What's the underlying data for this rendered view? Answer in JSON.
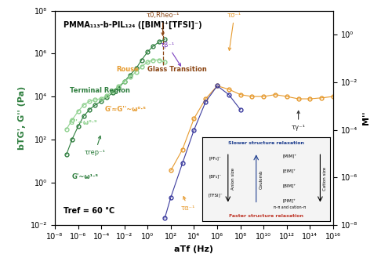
{
  "chart_data": {
    "type": "line",
    "title": "PMMA₁₁₃-b-PIL₁₂₄ ([BIM]⁺[TFSI]⁻)",
    "subtitle": "Tref = 60 °C",
    "x_label": "aTf (Hz)",
    "y_label": "bTG', G'' (Pa)",
    "y2_label": "M''",
    "log": true,
    "grid": false,
    "xlim": [
      1e-08,
      1e+16
    ],
    "xticks": [
      {
        "value": 1e-08,
        "label": "10⁻⁸"
      },
      {
        "value": 1e-06,
        "label": "10⁻⁶"
      },
      {
        "value": 0.0001,
        "label": "10⁻⁴"
      },
      {
        "value": 0.01,
        "label": "10⁻²"
      },
      {
        "value": 1,
        "label": "10⁰"
      },
      {
        "value": 100.0,
        "label": "10²"
      },
      {
        "value": 10000.0,
        "label": "10⁴"
      },
      {
        "value": 1000000.0,
        "label": "10⁶"
      },
      {
        "value": 100000000.0,
        "label": "10⁸"
      },
      {
        "value": 10000000000.0,
        "label": "10¹⁰"
      },
      {
        "value": 1000000000000.0,
        "label": "10¹²"
      },
      {
        "value": 100000000000000.0,
        "label": "10¹⁴"
      },
      {
        "value": 1e+16,
        "label": "10¹⁶"
      }
    ],
    "ylim": [
      0.01,
      100000000.0
    ],
    "yticks": [
      {
        "value": 0.01,
        "label": "10⁻²"
      },
      {
        "value": 1,
        "label": "10⁰"
      },
      {
        "value": 100.0,
        "label": "10²"
      },
      {
        "value": 10000.0,
        "label": "10⁴"
      },
      {
        "value": 1000000.0,
        "label": "10⁶"
      },
      {
        "value": 100000000.0,
        "label": "10⁸"
      }
    ],
    "y2lim": [
      1e-08,
      10.0
    ],
    "y2ticks": [
      {
        "value": 1e-08,
        "label": "10⁻⁸"
      },
      {
        "value": 1e-06,
        "label": "10⁻⁶"
      },
      {
        "value": 0.0001,
        "label": "10⁻⁴"
      },
      {
        "value": 0.01,
        "label": "10⁻²"
      },
      {
        "value": 1,
        "label": "10⁰"
      }
    ],
    "series": [
      {
        "color": "#2f7f3f",
        "marker": "circle",
        "axis": "y",
        "x": [
          1e-07,
          3e-07,
          1e-06,
          3e-06,
          1e-05,
          3e-05,
          0.0001,
          0.0003,
          0.001,
          0.003,
          0.01,
          0.03,
          0.1,
          0.3,
          1,
          3,
          10,
          30
        ],
        "values": [
          20,
          100,
          400,
          1200,
          2500,
          4000,
          6000,
          9000,
          15000,
          25000,
          50000,
          100000,
          200000,
          500000,
          1200000,
          2200000,
          3500000,
          4500000
        ]
      },
      {
        "color": "#8fd18f",
        "marker": "circle",
        "axis": "y",
        "x": [
          1e-07,
          3e-07,
          1e-06,
          3e-06,
          1e-05,
          3e-05,
          0.0001,
          0.0003,
          0.001,
          0.003,
          0.01,
          0.03,
          0.1,
          0.3,
          1,
          3,
          10,
          30
        ],
        "values": [
          300,
          800,
          2000,
          4000,
          6000,
          7000,
          8000,
          11000,
          18000,
          30000,
          50000,
          80000,
          140000,
          250000,
          400000,
          500000,
          500000,
          400000
        ]
      },
      {
        "color": "#e69a2e",
        "marker": "circle",
        "axis": "y2",
        "x": [
          100.0,
          1000.0,
          10000.0,
          100000.0,
          1000000.0,
          10000000.0,
          100000000.0,
          1000000000.0,
          10000000000.0,
          100000000000.0,
          1000000000000.0,
          10000000000000.0,
          100000000000000.0,
          1000000000000000.0,
          1e+16
        ],
        "values": [
          2e-06,
          1.5e-05,
          0.0003,
          0.002,
          0.007,
          0.005,
          0.003,
          0.0025,
          0.0025,
          0.003,
          0.0025,
          0.002,
          0.002,
          0.0022,
          0.0025
        ]
      },
      {
        "color": "#3b3b9e",
        "marker": "circle",
        "axis": "y2",
        "x": [
          30,
          100.0,
          1000.0,
          10000.0,
          100000.0,
          1000000.0,
          10000000.0,
          100000000.0
        ],
        "values": [
          2e-08,
          1.5e-07,
          4e-06,
          0.0001,
          0.0015,
          0.007,
          0.003,
          0.0007
        ]
      }
    ],
    "annotations": [
      "Terminal Region",
      "G''~ω⁰·⁹",
      "G'~ω¹·⁵",
      "G'≈G''~ω⁰·⁵",
      "Rouse",
      "Glass Transition"
    ],
    "markers": [
      {
        "text": "τrep⁻¹",
        "x": 0.0001
      },
      {
        "text": "τ0,Rheo⁻¹",
        "x": 20
      },
      {
        "text": "τσ⁻¹",
        "x": 10000000.0
      },
      {
        "text": "τβ⁻¹",
        "x": 1000.0
      },
      {
        "text": "τα⁻¹",
        "x": 1000.0
      },
      {
        "text": "τγ⁻¹",
        "x": 10000000000000.0
      }
    ],
    "inset": {
      "anions": [
        "[PF₆]⁻",
        "[BF₄]⁻",
        "[TFSI]⁻"
      ],
      "cations": [
        "[MIM]⁺",
        "[EIM]⁺",
        "[BIM]⁺",
        "[PIM]⁺"
      ],
      "anion_axis": "Anion size",
      "middle_axis": "Coulomb",
      "cation_axis": "Cation size",
      "top": "Slower structure relaxation",
      "bottom": "Faster structure relaxation",
      "note": "π–π and cation–π"
    }
  }
}
